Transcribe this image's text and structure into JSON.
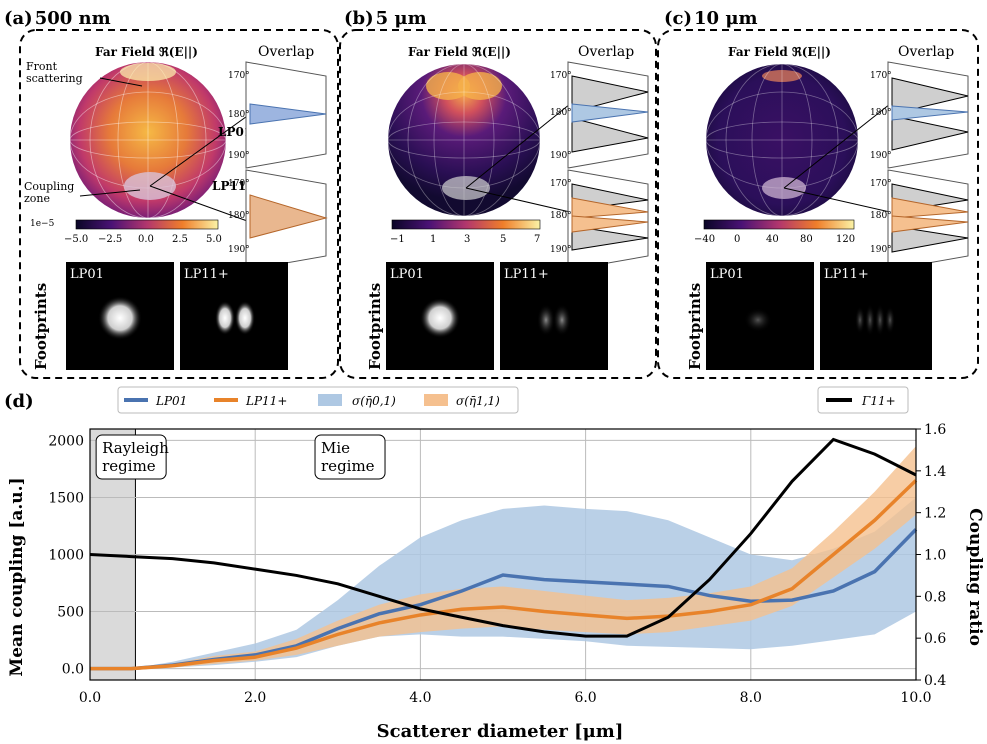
{
  "panels": [
    {
      "tag": "(a)",
      "title": "500 nm",
      "far_field": "Far Field ℜ(E||)",
      "overlap": "Overlap",
      "colorbar_ticks": [
        "−5.0",
        "−2.5",
        "0.0",
        "2.5",
        "5.0"
      ],
      "colorbar_exp": "1e−5",
      "annotations": [
        "Front",
        "scattering",
        "Coupling",
        "zone",
        "LP01",
        "LP11+"
      ],
      "polar_ticks": [
        "170°",
        "180°",
        "190°"
      ],
      "footprints_label": "Footprints",
      "modes": [
        "LP01",
        "LP11+"
      ]
    },
    {
      "tag": "(b)",
      "title": "5 μm",
      "far_field": "Far Field ℜ(E||)",
      "overlap": "Overlap",
      "colorbar_ticks": [
        "−1",
        "1",
        "3",
        "5",
        "7"
      ],
      "colorbar_exp": "",
      "polar_ticks": [
        "170°",
        "180°",
        "190°"
      ],
      "footprints_label": "Footprints",
      "modes": [
        "LP01",
        "LP11+"
      ]
    },
    {
      "tag": "(c)",
      "title": "10 μm",
      "far_field": "Far Field ℜ(E||)",
      "overlap": "Overlap",
      "colorbar_ticks": [
        "−40",
        "0",
        "40",
        "80",
        "120"
      ],
      "colorbar_exp": "",
      "polar_ticks": [
        "170°",
        "180°",
        "190°"
      ],
      "footprints_label": "Footprints",
      "modes": [
        "LP01",
        "LP11+"
      ]
    }
  ],
  "colors": {
    "lp01": "#4a73b0",
    "lp11": "#e8832a",
    "lp01_band": "#aec8e3",
    "lp11_band": "#f5c08f",
    "gamma": "#000000",
    "rayleigh": "#dadada"
  },
  "chart_data": {
    "type": "line",
    "tag": "(d)",
    "xlabel": "Scatterer diameter [μm]",
    "ylabel": "Mean coupling [a.u.]",
    "y2label": "Coupling ratio",
    "xlim": [
      0,
      10
    ],
    "ylim": [
      -100,
      2100
    ],
    "y2lim": [
      0.4,
      1.6
    ],
    "x_ticks": [
      "0.0",
      "2.0",
      "4.0",
      "6.0",
      "8.0",
      "10.0"
    ],
    "y_ticks": [
      "0.0",
      "500",
      "1000",
      "1500",
      "2000"
    ],
    "y2_ticks": [
      "0.4",
      "0.6",
      "0.8",
      "1.0",
      "1.2",
      "1.4",
      "1.6"
    ],
    "grid": true,
    "legend_position": "top",
    "regime_labels": [
      {
        "text": [
          "Rayleigh",
          "regime"
        ],
        "x": 0.05
      },
      {
        "text": [
          "Mie",
          "regime"
        ],
        "x": 2.7
      }
    ],
    "rayleigh_boundary": 0.55,
    "legend": [
      "LP01",
      "LP11+",
      "σ(η̄0,1)",
      "σ(η̄1,1)",
      "Γ11+"
    ],
    "x": [
      0,
      0.5,
      1,
      1.5,
      2,
      2.5,
      3,
      3.5,
      4,
      4.5,
      5,
      5.5,
      6,
      6.5,
      7,
      7.5,
      8,
      8.5,
      9,
      9.5,
      10
    ],
    "series": [
      {
        "name": "LP01",
        "axis": "left",
        "values": [
          0,
          0,
          30,
          80,
          120,
          200,
          350,
          480,
          560,
          680,
          820,
          780,
          760,
          740,
          720,
          640,
          590,
          600,
          680,
          850,
          1220
        ]
      },
      {
        "name": "LP11+",
        "axis": "left",
        "values": [
          0,
          0,
          25,
          70,
          100,
          180,
          300,
          400,
          470,
          520,
          540,
          500,
          470,
          440,
          460,
          500,
          560,
          700,
          1000,
          1300,
          1650
        ]
      },
      {
        "name": "Γ11+",
        "axis": "right",
        "values": [
          1.0,
          0.99,
          0.98,
          0.96,
          0.93,
          0.9,
          0.86,
          0.8,
          0.74,
          0.7,
          0.66,
          0.63,
          0.61,
          0.61,
          0.7,
          0.88,
          1.1,
          1.35,
          1.55,
          1.48,
          1.38
        ]
      }
    ],
    "bands": [
      {
        "name": "σ(η̄0,1)",
        "lower": [
          0,
          0,
          10,
          30,
          60,
          100,
          200,
          280,
          300,
          280,
          280,
          260,
          240,
          200,
          190,
          180,
          170,
          200,
          250,
          300,
          500
        ],
        "upper": [
          0,
          0,
          60,
          140,
          220,
          340,
          600,
          900,
          1150,
          1300,
          1400,
          1430,
          1400,
          1380,
          1300,
          1150,
          1000,
          950,
          1050,
          1200,
          1500
        ]
      },
      {
        "name": "σ(η̄1,1)",
        "lower": [
          0,
          0,
          10,
          40,
          70,
          120,
          200,
          280,
          320,
          350,
          370,
          340,
          320,
          300,
          320,
          370,
          420,
          550,
          800,
          1050,
          1350
        ]
      },
      {
        "name": "σ(η̄1,1)_upper",
        "upper": [
          0,
          0,
          45,
          110,
          150,
          260,
          420,
          560,
          650,
          700,
          720,
          680,
          640,
          600,
          620,
          660,
          720,
          880,
          1200,
          1550,
          1950
        ]
      }
    ]
  }
}
